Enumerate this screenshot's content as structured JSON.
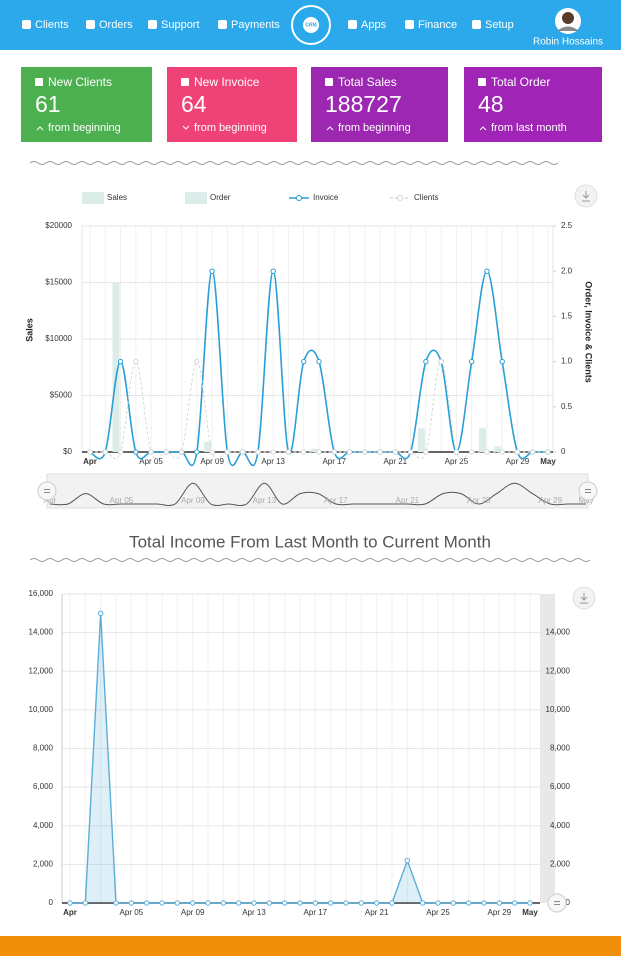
{
  "nav": {
    "items": [
      "Clients",
      "Orders",
      "Support",
      "Payments",
      "Apps",
      "Finance",
      "Setup"
    ],
    "logo": "CRM",
    "user": "Robin Hossains"
  },
  "cards": [
    {
      "title": "New Clients",
      "value": 61,
      "footer": "from beginning",
      "color": "#4caf50"
    },
    {
      "title": "New Invoice",
      "value": 64,
      "footer": "from beginning",
      "color": "#ef4277"
    },
    {
      "title": "Total Sales",
      "value": 188727,
      "footer": "from beginning",
      "color": "#9c27b0"
    },
    {
      "title": "Total Order",
      "value": 48,
      "footer": "from last month",
      "color": "#a024b6"
    }
  ],
  "chart_data": [
    {
      "type": "combo",
      "ylabel": "Sales",
      "y2label": "Order, Invoice & Clients",
      "categories": [
        "Apr",
        null,
        null,
        null,
        "Apr 05",
        null,
        null,
        null,
        "Apr 09",
        null,
        null,
        null,
        "Apr 13",
        null,
        null,
        null,
        "Apr 17",
        null,
        null,
        null,
        "Apr 21",
        null,
        null,
        null,
        "Apr 25",
        null,
        null,
        null,
        "Apr 29",
        null,
        "May"
      ],
      "ylim": [
        0,
        20000
      ],
      "yticks": [
        {
          "value": 0,
          "label": "$0"
        },
        {
          "value": 5000,
          "label": "$5000"
        },
        {
          "value": 10000,
          "label": "$10000"
        },
        {
          "value": 15000,
          "label": "$15000"
        },
        {
          "value": 20000,
          "label": "$20000"
        }
      ],
      "y2lim": [
        0,
        2.5
      ],
      "y2ticks": [
        0,
        0.5,
        {
          "value": 1,
          "label": "1.0"
        },
        1.5,
        {
          "value": 2,
          "label": "2.0"
        },
        2.5
      ],
      "grid": true,
      "series": [
        {
          "name": "Sales",
          "type": "bar",
          "color": "#dcece8",
          "values": [
            0,
            0,
            15000,
            0,
            0,
            0,
            0,
            0,
            900,
            0,
            0,
            0,
            0,
            0,
            0,
            300,
            0,
            0,
            0,
            0,
            0,
            0,
            2100,
            0,
            0,
            0,
            2100,
            500,
            0,
            0,
            0
          ]
        },
        {
          "name": "Order",
          "type": "bar",
          "color": "#dcece8",
          "axis": "y2",
          "values": [
            0,
            0,
            0,
            0,
            0,
            0,
            0,
            0,
            0,
            0,
            0,
            0,
            0,
            0,
            0,
            0,
            0,
            0,
            0,
            0,
            0,
            0,
            0,
            0,
            0,
            0,
            0,
            0,
            0,
            0,
            0
          ]
        },
        {
          "name": "Invoice",
          "type": "line",
          "color": "#2a9fd6",
          "axis": "y2",
          "values": [
            0,
            0,
            1,
            0,
            0,
            0,
            0,
            0,
            2,
            0,
            0,
            0,
            2,
            0,
            1,
            1,
            0,
            0,
            0,
            0,
            0,
            0,
            1,
            1,
            0,
            1,
            2,
            1,
            0,
            0,
            0
          ]
        },
        {
          "name": "Clients",
          "type": "dashed",
          "color": "#d8d8d8",
          "axis": "y2",
          "values": [
            0,
            0,
            0,
            1,
            0,
            0,
            0,
            1,
            0,
            0,
            0,
            0,
            0,
            0,
            0,
            0,
            0,
            0,
            0,
            0,
            0,
            0,
            0,
            1,
            0,
            0,
            0,
            0,
            0,
            0,
            0
          ]
        }
      ]
    },
    {
      "type": "area",
      "title": "Total Income From Last Month to Current Month",
      "categories": [
        "Apr",
        null,
        null,
        null,
        "Apr 05",
        null,
        null,
        null,
        "Apr 09",
        null,
        null,
        null,
        "Apr 13",
        null,
        null,
        null,
        "Apr 17",
        null,
        null,
        null,
        "Apr 21",
        null,
        null,
        null,
        "Apr 25",
        null,
        null,
        null,
        "Apr 29",
        null,
        "May"
      ],
      "color": "#5aaed8",
      "values": [
        0,
        0,
        15000,
        0,
        0,
        0,
        0,
        0,
        0,
        0,
        0,
        0,
        0,
        0,
        0,
        0,
        0,
        0,
        0,
        0,
        0,
        0,
        2200,
        0,
        0,
        0,
        0,
        0,
        0,
        0,
        0
      ],
      "ylim": [
        0,
        16000
      ],
      "yticks": [
        0,
        {
          "value": 2000,
          "label": "2,000"
        },
        {
          "value": 4000,
          "label": "4,000"
        },
        {
          "value": 6000,
          "label": "6,000"
        },
        {
          "value": 8000,
          "label": "8,000"
        },
        {
          "value": 10000,
          "label": "10,000"
        },
        {
          "value": 12000,
          "label": "12,000"
        },
        {
          "value": 14000,
          "label": "14,000"
        },
        {
          "value": 16000,
          "label": "16,000"
        }
      ],
      "y2lim": [
        0,
        16000
      ],
      "y2ticks": [
        0,
        {
          "value": 2000,
          "label": "2,000"
        },
        {
          "value": 4000,
          "label": "4,000"
        },
        {
          "value": 6000,
          "label": "6,000"
        },
        {
          "value": 8000,
          "label": "8,000"
        },
        {
          "value": 10000,
          "label": "10,000"
        },
        {
          "value": 12000,
          "label": "12,000"
        },
        {
          "value": 14000,
          "label": "14,000"
        }
      ],
      "grid": true
    }
  ]
}
